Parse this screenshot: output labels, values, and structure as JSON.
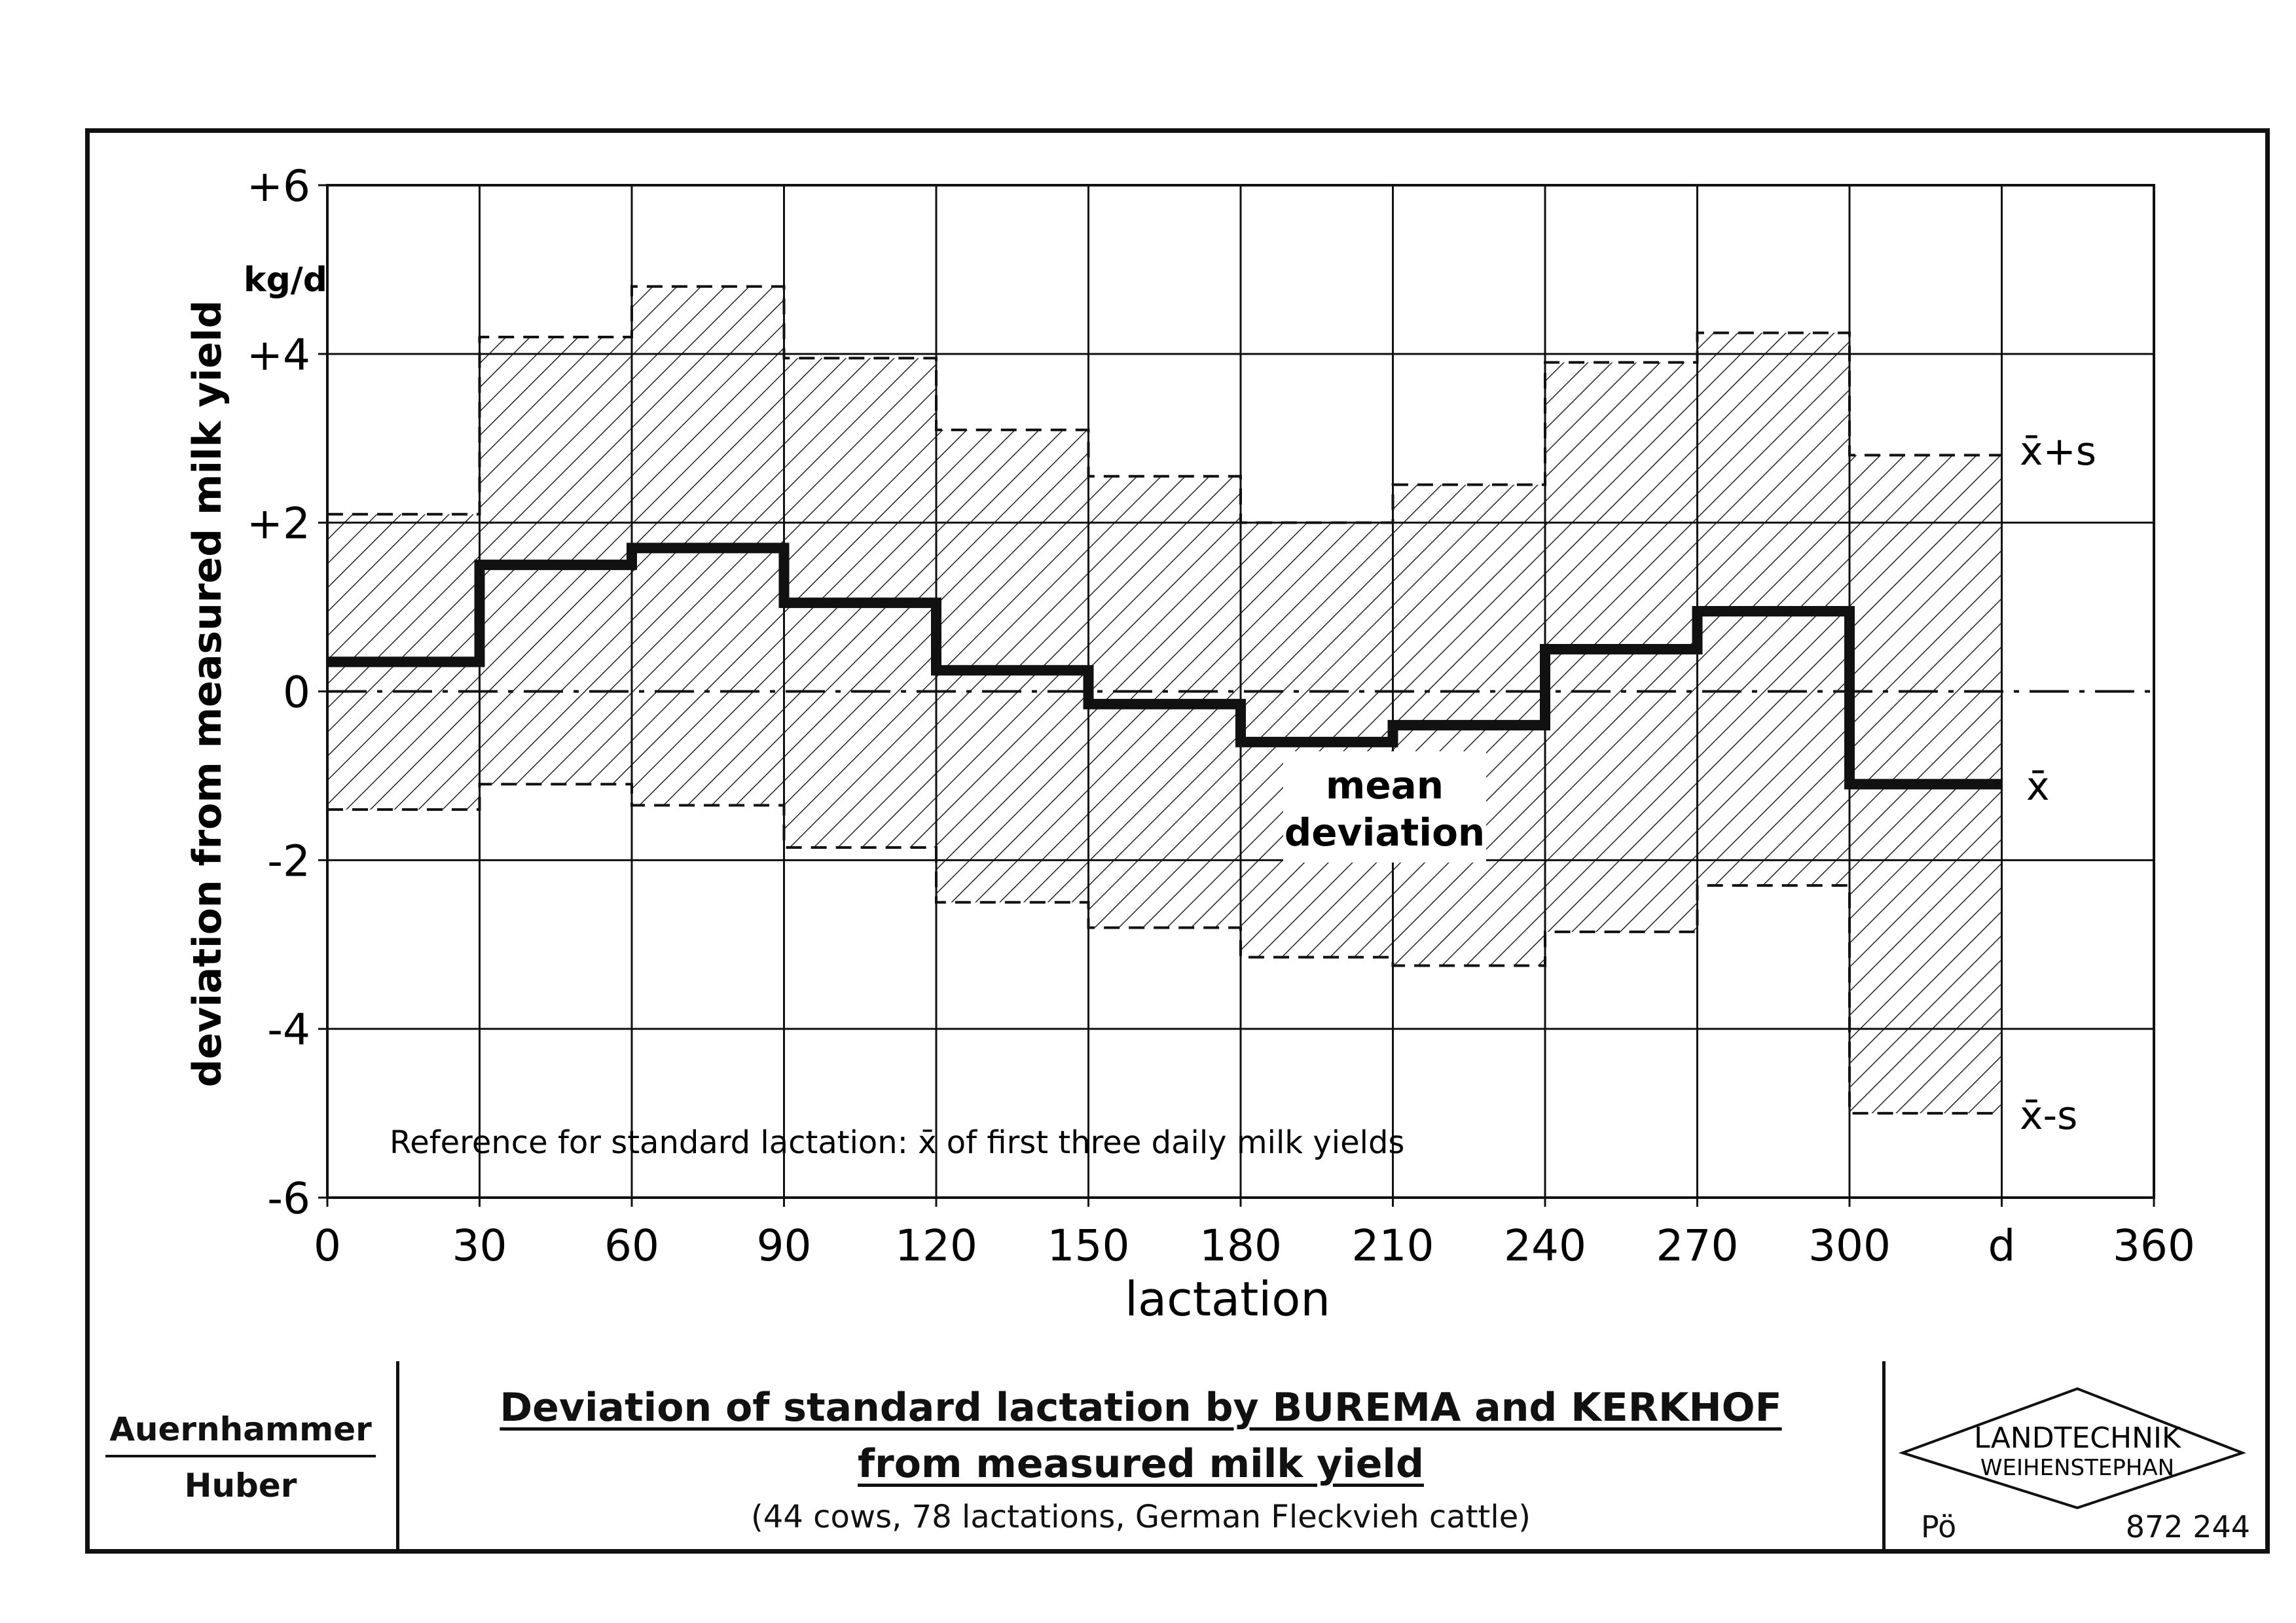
{
  "chart_data": {
    "type": "line",
    "xlabel": "lactation",
    "ylabel": "deviation from measured milk yield",
    "yunit": "kg/d",
    "xunit": "d",
    "xlim": [
      0,
      360
    ],
    "ylim": [
      -6,
      6
    ],
    "x_ticks": [
      "0",
      "30",
      "60",
      "90",
      "120",
      "150",
      "180",
      "210",
      "240",
      "270",
      "300",
      "d",
      "360"
    ],
    "y_ticks": [
      "+6",
      "+4",
      "+2",
      "0",
      "-2",
      "-4",
      "-6"
    ],
    "y_tick_values": [
      6,
      4,
      2,
      0,
      -2,
      -4,
      -6
    ],
    "grid": true,
    "intervals": [
      0,
      30,
      60,
      90,
      120,
      150,
      180,
      210,
      240,
      270,
      300,
      330
    ],
    "series": [
      {
        "name": "x̄+s",
        "style": "dashed",
        "values": [
          2.1,
          4.2,
          4.8,
          3.95,
          3.1,
          2.55,
          2.0,
          2.45,
          3.9,
          4.25,
          2.8
        ]
      },
      {
        "name": "x̄",
        "style": "bold",
        "values": [
          0.35,
          1.5,
          1.7,
          1.05,
          0.25,
          -0.15,
          -0.6,
          -0.4,
          0.5,
          0.95,
          -1.1
        ]
      },
      {
        "name": "x̄-s",
        "style": "dashed",
        "values": [
          -1.4,
          -1.1,
          -1.35,
          -1.85,
          -2.5,
          -2.8,
          -3.15,
          -3.25,
          -2.85,
          -2.3,
          -5.0
        ]
      }
    ],
    "annotations": {
      "mean_label_line1": "mean",
      "mean_label_line2": "deviation",
      "reference_note": "Reference for standard lactation: x̄ of first three daily milk yields"
    }
  },
  "footer": {
    "author1": "Auernhammer",
    "author2": "Huber",
    "title_line1": "Deviation of standard lactation by BUREMA and KERKHOF",
    "title_line2": "from measured milk yield",
    "subtitle": "(44 cows, 78 lactations, German Fleckvieh cattle)",
    "logo_line1": "LANDTECHNIK",
    "logo_line2": "WEIHENSTEPHAN",
    "code_left": "Pö",
    "code_right": "872 244"
  }
}
